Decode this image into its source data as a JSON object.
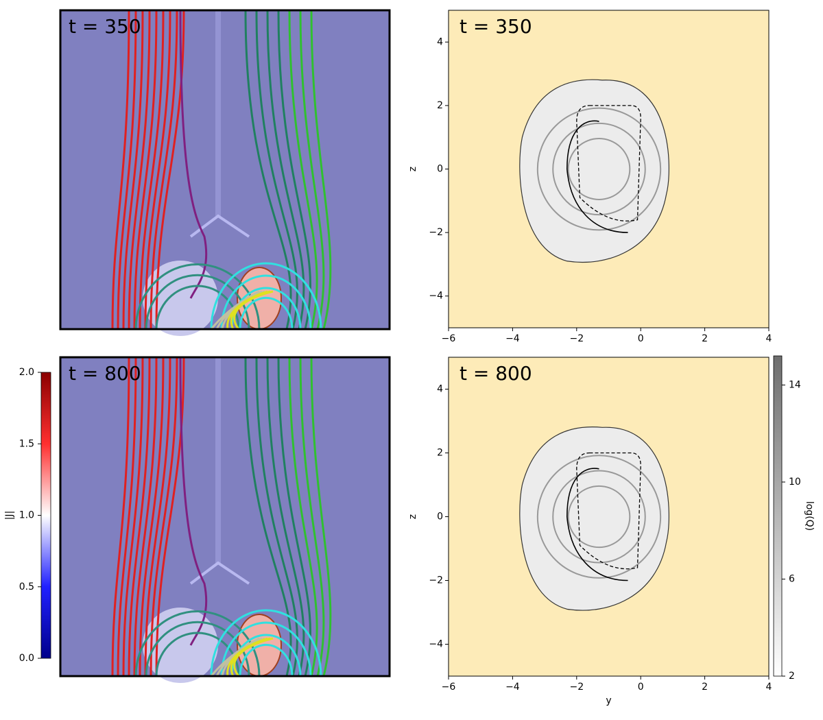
{
  "chart_data": [
    {
      "type": "image",
      "annotation": "t = 350"
    },
    {
      "type": "contour",
      "annotation": "t = 350",
      "xlim": [
        -6,
        4
      ],
      "ylim": [
        -5,
        5
      ],
      "xticks": [
        {
          "value": -6,
          "label": "−6"
        },
        {
          "value": -4,
          "label": "−4"
        },
        {
          "value": -2,
          "label": "−2"
        },
        0,
        2,
        4
      ],
      "yticks": [
        {
          "value": -4,
          "label": "−4"
        },
        {
          "value": -2,
          "label": "−2"
        },
        0,
        2,
        4
      ],
      "ylabel": "z",
      "color": "#fdebb8"
    },
    {
      "type": "image",
      "annotation": "t = 800",
      "colorbar": {
        "label": "|J|",
        "lim": [
          0,
          2
        ],
        "ticks": [
          {
            "value": 0,
            "label": "0.0"
          },
          0.5,
          {
            "value": 1,
            "label": "1.0"
          },
          1.5,
          {
            "value": 2,
            "label": "2.0"
          }
        ],
        "colors": [
          "#00008b",
          "#2020ff",
          "#ffffff",
          "#ff3030",
          "#8b0000"
        ]
      }
    },
    {
      "type": "contour",
      "annotation": "t = 800",
      "xlim": [
        -6,
        4
      ],
      "ylim": [
        -5,
        5
      ],
      "xticks": [
        {
          "value": -6,
          "label": "−6"
        },
        {
          "value": -4,
          "label": "−4"
        },
        {
          "value": -2,
          "label": "−2"
        },
        0,
        2,
        4
      ],
      "yticks": [
        {
          "value": -4,
          "label": "−4"
        },
        {
          "value": -2,
          "label": "−2"
        },
        0,
        2,
        4
      ],
      "xlabel": "y",
      "ylabel": "z",
      "color": "#fdebb8",
      "colorbar": {
        "label": "log(Q)",
        "lim": [
          2,
          15.2
        ],
        "ticks": [
          2,
          6,
          10,
          14
        ],
        "colors": [
          "#ffffff",
          "#6e6e6e"
        ]
      }
    }
  ]
}
